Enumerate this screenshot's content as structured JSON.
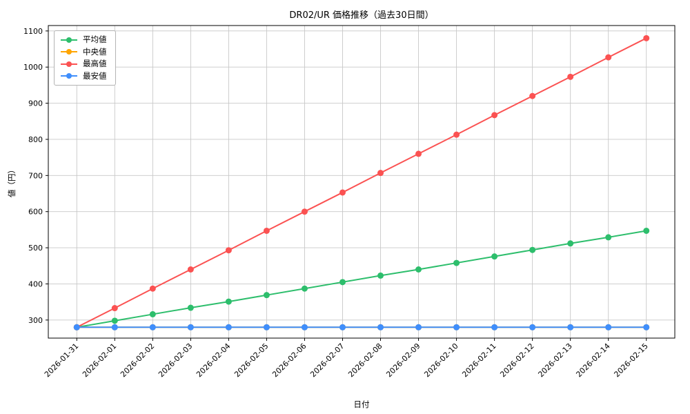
{
  "chart_data": {
    "type": "line",
    "title": "DR02/UR 価格推移（過去30日間）",
    "xlabel": "日付",
    "ylabel": "値（円）",
    "x": [
      "2026-01-31",
      "2026-02-01",
      "2026-02-02",
      "2026-02-03",
      "2026-02-04",
      "2026-02-05",
      "2026-02-06",
      "2026-02-07",
      "2026-02-08",
      "2026-02-09",
      "2026-02-10",
      "2026-02-11",
      "2026-02-12",
      "2026-02-13",
      "2026-02-14",
      "2026-02-15"
    ],
    "ylim": [
      250,
      1115
    ],
    "yticks": [
      300,
      400,
      500,
      600,
      700,
      800,
      900,
      1000,
      1100
    ],
    "grid": true,
    "legend_position": "upper-left",
    "series": [
      {
        "key": "average",
        "name": "平均値",
        "color": "#2dbe6c",
        "values": [
          280,
          298,
          316,
          334,
          351,
          369,
          387,
          405,
          423,
          440,
          458,
          476,
          494,
          512,
          529,
          547
        ]
      },
      {
        "key": "median",
        "name": "中央値",
        "color": "#ffa502",
        "values": [
          280,
          280,
          280,
          280,
          280,
          280,
          280,
          280,
          280,
          280,
          280,
          280,
          280,
          280,
          280,
          280
        ]
      },
      {
        "key": "max",
        "name": "最高値",
        "color": "#fb5252",
        "values": [
          280,
          333,
          387,
          440,
          493,
          547,
          600,
          653,
          707,
          760,
          813,
          867,
          920,
          973,
          1027,
          1080
        ]
      },
      {
        "key": "min",
        "name": "最安値",
        "color": "#3f8efc",
        "values": [
          280,
          280,
          280,
          280,
          280,
          280,
          280,
          280,
          280,
          280,
          280,
          280,
          280,
          280,
          280,
          280
        ]
      }
    ]
  }
}
